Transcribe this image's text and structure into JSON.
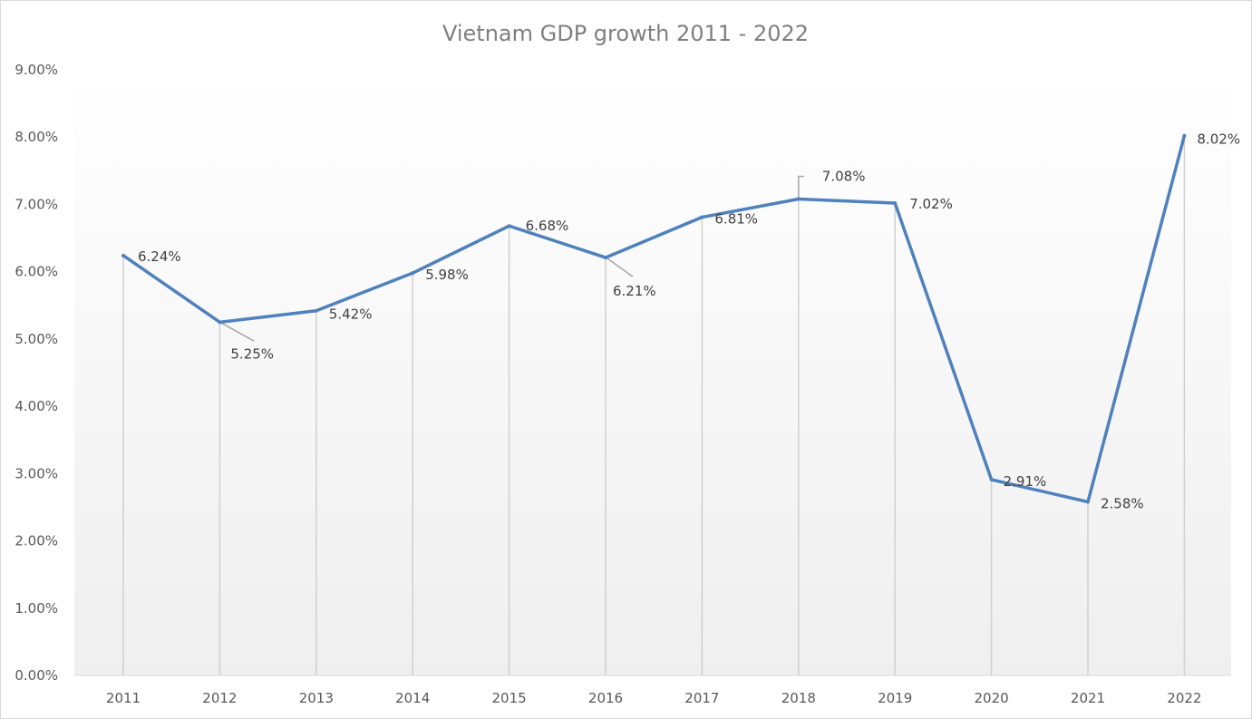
{
  "chart_data": {
    "type": "line",
    "title": "Vietnam GDP growth 2011 - 2022",
    "xlabel": "",
    "ylabel": "",
    "categories": [
      "2011",
      "2012",
      "2013",
      "2014",
      "2015",
      "2016",
      "2017",
      "2018",
      "2019",
      "2020",
      "2021",
      "2022"
    ],
    "series": [
      {
        "name": "GDP growth",
        "values": [
          6.24,
          5.25,
          5.42,
          5.98,
          6.68,
          6.21,
          6.81,
          7.08,
          7.02,
          2.91,
          2.58,
          8.02
        ],
        "labels": [
          "6.24%",
          "5.25%",
          "5.42%",
          "5.98%",
          "6.68%",
          "6.21%",
          "6.81%",
          "7.08%",
          "7.02%",
          "2.91%",
          "2.58%",
          "8.02%"
        ]
      }
    ],
    "ylim": [
      0,
      9
    ],
    "yticks": [
      0,
      1,
      2,
      3,
      4,
      5,
      6,
      7,
      8,
      9
    ],
    "ytick_labels": [
      "0.00%",
      "1.00%",
      "2.00%",
      "3.00%",
      "4.00%",
      "5.00%",
      "6.00%",
      "7.00%",
      "8.00%",
      "9.00%"
    ],
    "drop_lines": true,
    "line_color": "#4f81bd",
    "grid": false
  }
}
